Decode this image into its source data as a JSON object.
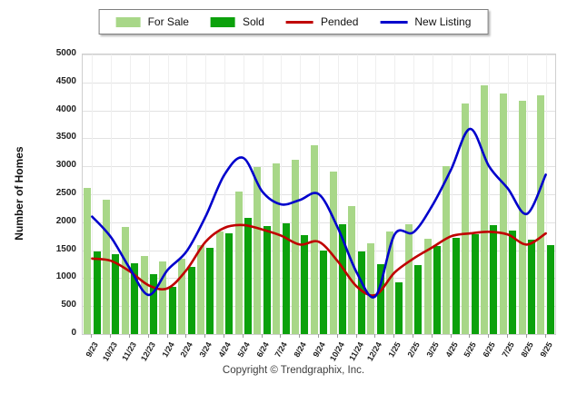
{
  "chart_data": {
    "type": "combo",
    "title": "",
    "xlabel": "",
    "ylabel": "Number of Homes",
    "ylim": [
      0,
      5000
    ],
    "ytick_step": 500,
    "grid": true,
    "legend_position": "top-center",
    "categories": [
      "9/23",
      "10/23",
      "11/23",
      "12/23",
      "1/24",
      "2/24",
      "3/24",
      "4/24",
      "5/24",
      "6/24",
      "7/24",
      "8/24",
      "9/24",
      "10/24",
      "11/24",
      "12/24",
      "1/25",
      "2/25",
      "3/25",
      "4/25",
      "5/25",
      "6/25",
      "7/25",
      "8/25",
      "9/25"
    ],
    "series": [
      {
        "name": "For Sale",
        "type": "bar",
        "color": "#a8d788",
        "values": [
          2620,
          2400,
          1920,
          1390,
          1300,
          1340,
          1590,
          1840,
          2550,
          2980,
          3050,
          3120,
          3370,
          2900,
          2290,
          1630,
          1840,
          1970,
          1700,
          3000,
          4130,
          4450,
          4310,
          4170,
          4270
        ]
      },
      {
        "name": "Sold",
        "type": "bar",
        "color": "#0ca10c",
        "values": [
          1470,
          1430,
          1260,
          1070,
          850,
          1200,
          1550,
          1800,
          2080,
          1930,
          1980,
          1770,
          1500,
          1960,
          1470,
          1250,
          920,
          1230,
          1570,
          1720,
          1790,
          1950,
          1850,
          1690,
          1590
        ]
      },
      {
        "name": "Pended",
        "type": "line",
        "color": "#c00000",
        "values": [
          1350,
          1310,
          1120,
          870,
          820,
          1150,
          1650,
          1900,
          1950,
          1870,
          1760,
          1600,
          1650,
          1300,
          850,
          700,
          1100,
          1350,
          1550,
          1750,
          1800,
          1830,
          1780,
          1600,
          1800
        ]
      },
      {
        "name": "New Listing",
        "type": "line",
        "color": "#0000cc",
        "values": [
          2100,
          1730,
          1170,
          700,
          1150,
          1480,
          2100,
          2850,
          3150,
          2550,
          2320,
          2400,
          2500,
          1900,
          1100,
          680,
          1780,
          1820,
          2300,
          2950,
          3670,
          3000,
          2600,
          2150,
          2850
        ]
      }
    ],
    "footer": "Copyright © Trendgraphix, Inc."
  }
}
